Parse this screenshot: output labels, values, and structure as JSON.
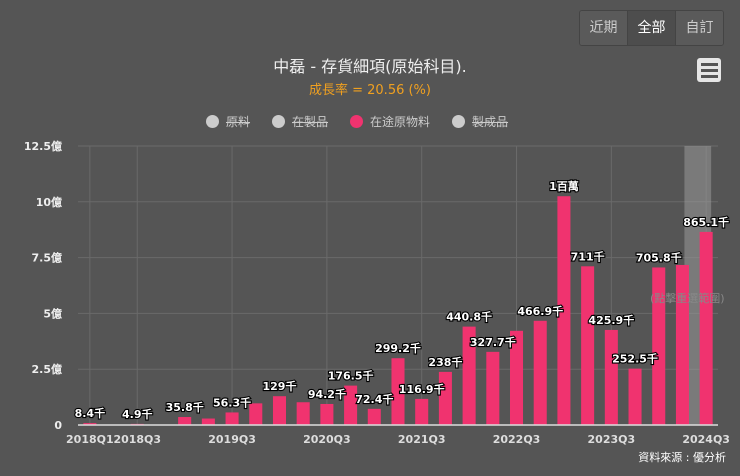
{
  "range_buttons": [
    {
      "label": "近期"
    },
    {
      "label": "全部",
      "active": true
    },
    {
      "label": "自訂"
    }
  ],
  "menu_icon": "hamburger-menu-icon",
  "title": "中磊 - 存貨細項(原始科目).",
  "subtitle": "成長率 = 20.56 (%)",
  "legend": [
    {
      "label": "原料",
      "color": "#cccccc",
      "visible": false
    },
    {
      "label": "在製品",
      "color": "#cccccc",
      "visible": false
    },
    {
      "label": "在途原物料",
      "color": "#f0336f",
      "visible": true
    },
    {
      "label": "製成品",
      "color": "#cccccc",
      "visible": false
    }
  ],
  "reset_zoom_label": "(點擊重選範圍)",
  "source": "資料來源 : 優分析",
  "chart_data": {
    "type": "bar",
    "series": [
      {
        "name": "在途原物料",
        "color": "#f0336f",
        "values": [
          0.084,
          0.02,
          0.049,
          0.02,
          0.358,
          0.29,
          0.563,
          0.97,
          1.29,
          1.02,
          0.942,
          1.765,
          0.724,
          2.992,
          1.169,
          2.38,
          4.408,
          3.277,
          4.22,
          4.669,
          10.25,
          7.11,
          4.259,
          2.525,
          7.058,
          7.17,
          8.651
        ],
        "data_labels": [
          "8.4千",
          null,
          "4.9千",
          null,
          "35.8千",
          null,
          "56.3千",
          null,
          "129千",
          null,
          "94.2千",
          "176.5千",
          "72.4千",
          "299.2千",
          "116.9千",
          "238千",
          "440.8千",
          "327.7千",
          null,
          "466.9千",
          "1百萬",
          "711千",
          "425.9千",
          "252.5千",
          "705.8千",
          null,
          "865.1千"
        ]
      }
    ],
    "categories": [
      "2018Q1",
      "2018Q2",
      "2018Q3",
      "2018Q4",
      "2019Q1",
      "2019Q2",
      "2019Q3",
      "2019Q4",
      "2020Q1",
      "2020Q2",
      "2020Q3",
      "2020Q4",
      "2021Q1",
      "2021Q2",
      "2021Q3",
      "2021Q4",
      "2022Q1",
      "2022Q2",
      "2022Q3",
      "2022Q4",
      "2023Q1",
      "2023Q2",
      "2023Q3",
      "2023Q4",
      "2024Q1",
      "2024Q2",
      "2024Q3"
    ],
    "x_tick_labels": [
      "2018Q1",
      "2018Q3",
      "2019Q3",
      "2020Q3",
      "2021Q3",
      "2022Q3",
      "2023Q3",
      "2024Q3"
    ],
    "y_ticks": [
      0,
      2.5,
      5,
      7.5,
      10,
      12.5
    ],
    "y_tick_labels": [
      "0",
      "2.5億",
      "5億",
      "7.5億",
      "10億",
      "12.5億"
    ],
    "ylim": [
      0,
      12.5
    ],
    "grid": true,
    "highlighted_category": "2024Q2"
  }
}
